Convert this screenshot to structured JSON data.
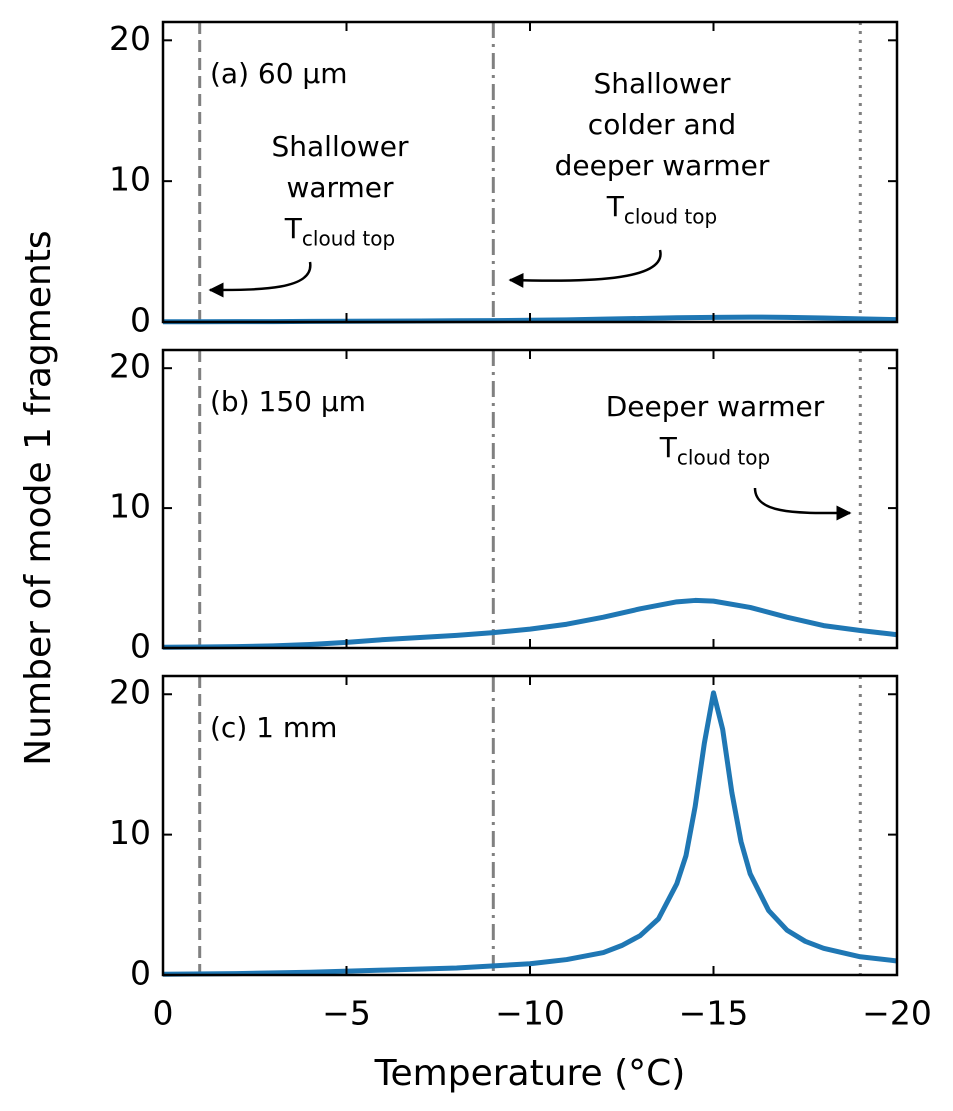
{
  "chart_data": [
    {
      "type": "line",
      "label": "(a) 60 μm",
      "x": [
        0,
        -1,
        -2,
        -3,
        -4,
        -5,
        -6,
        -7,
        -8,
        -9,
        -10,
        -11,
        -12,
        -13,
        -14,
        -15,
        -16,
        -17,
        -18,
        -19,
        -20
      ],
      "series": [
        {
          "color": "#1f77b4",
          "values": [
            0.02,
            0.02,
            0.03,
            0.03,
            0.04,
            0.05,
            0.06,
            0.07,
            0.09,
            0.1,
            0.12,
            0.15,
            0.2,
            0.25,
            0.3,
            0.33,
            0.35,
            0.33,
            0.28,
            0.22,
            0.17
          ]
        }
      ],
      "xlim": [
        0,
        -20
      ],
      "xticks": [
        0,
        -5,
        -10,
        -15,
        -20
      ],
      "ylim": [
        0,
        21.3
      ],
      "yticks": [
        0,
        10,
        20
      ],
      "vlines": [
        {
          "x": -1,
          "style": "dashed"
        },
        {
          "x": -9,
          "style": "dashdot"
        },
        {
          "x": -19,
          "style": "dotted"
        }
      ],
      "annotations": [
        {
          "lines": [
            "Shallower",
            "warmer"
          ],
          "symbol": "T",
          "subscript": "cloud top"
        },
        {
          "lines": [
            "Shallower",
            "colder and",
            "deeper warmer"
          ],
          "symbol": "T",
          "subscript": "cloud top"
        }
      ]
    },
    {
      "type": "line",
      "label": "(b) 150 μm",
      "ylabel": "Number of mode 1 fragments",
      "x": [
        0,
        -1,
        -2,
        -3,
        -4,
        -5,
        -6,
        -7,
        -8,
        -9,
        -10,
        -11,
        -12,
        -13,
        -14,
        -14.5,
        -15,
        -16,
        -17,
        -18,
        -19,
        -20
      ],
      "series": [
        {
          "color": "#1f77b4",
          "values": [
            0.05,
            0.07,
            0.1,
            0.15,
            0.25,
            0.4,
            0.6,
            0.75,
            0.9,
            1.1,
            1.35,
            1.7,
            2.2,
            2.8,
            3.3,
            3.4,
            3.35,
            2.9,
            2.2,
            1.6,
            1.25,
            0.95
          ]
        }
      ],
      "xlim": [
        0,
        -20
      ],
      "xticks": [
        0,
        -5,
        -10,
        -15,
        -20
      ],
      "ylim": [
        0,
        21.3
      ],
      "yticks": [
        0,
        10,
        20
      ],
      "vlines": [
        {
          "x": -1,
          "style": "dashed"
        },
        {
          "x": -9,
          "style": "dashdot"
        },
        {
          "x": -19,
          "style": "dotted"
        }
      ],
      "annotations": [
        {
          "lines": [
            "Deeper warmer"
          ],
          "symbol": "T",
          "subscript": "cloud top"
        }
      ]
    },
    {
      "type": "line",
      "label": "(c) 1 mm",
      "xlabel": "Temperature (°C)",
      "x": [
        0,
        -2,
        -4,
        -6,
        -8,
        -10,
        -11,
        -12,
        -12.5,
        -13,
        -13.5,
        -14,
        -14.25,
        -14.5,
        -14.75,
        -15,
        -15.25,
        -15.5,
        -15.75,
        -16,
        -16.5,
        -17,
        -17.5,
        -18,
        -19,
        -20
      ],
      "series": [
        {
          "color": "#1f77b4",
          "values": [
            0.05,
            0.1,
            0.2,
            0.35,
            0.5,
            0.8,
            1.1,
            1.6,
            2.1,
            2.8,
            4,
            6.5,
            8.5,
            12,
            16.5,
            20.1,
            17.5,
            13,
            9.5,
            7.2,
            4.6,
            3.2,
            2.4,
            1.9,
            1.3,
            1.0
          ]
        }
      ],
      "xlim": [
        0,
        -20
      ],
      "xticks": [
        0,
        {
          "value": -5,
          "label": "−5"
        },
        {
          "value": -10,
          "label": "−10"
        },
        {
          "value": -15,
          "label": "−15"
        },
        {
          "value": -20,
          "label": "−20"
        }
      ],
      "ylim": [
        0,
        21.3
      ],
      "yticks": [
        0,
        10,
        20
      ],
      "vlines": [
        {
          "x": -1,
          "style": "dashed"
        },
        {
          "x": -9,
          "style": "dashdot"
        },
        {
          "x": -19,
          "style": "dotted"
        }
      ],
      "annotations": []
    }
  ]
}
